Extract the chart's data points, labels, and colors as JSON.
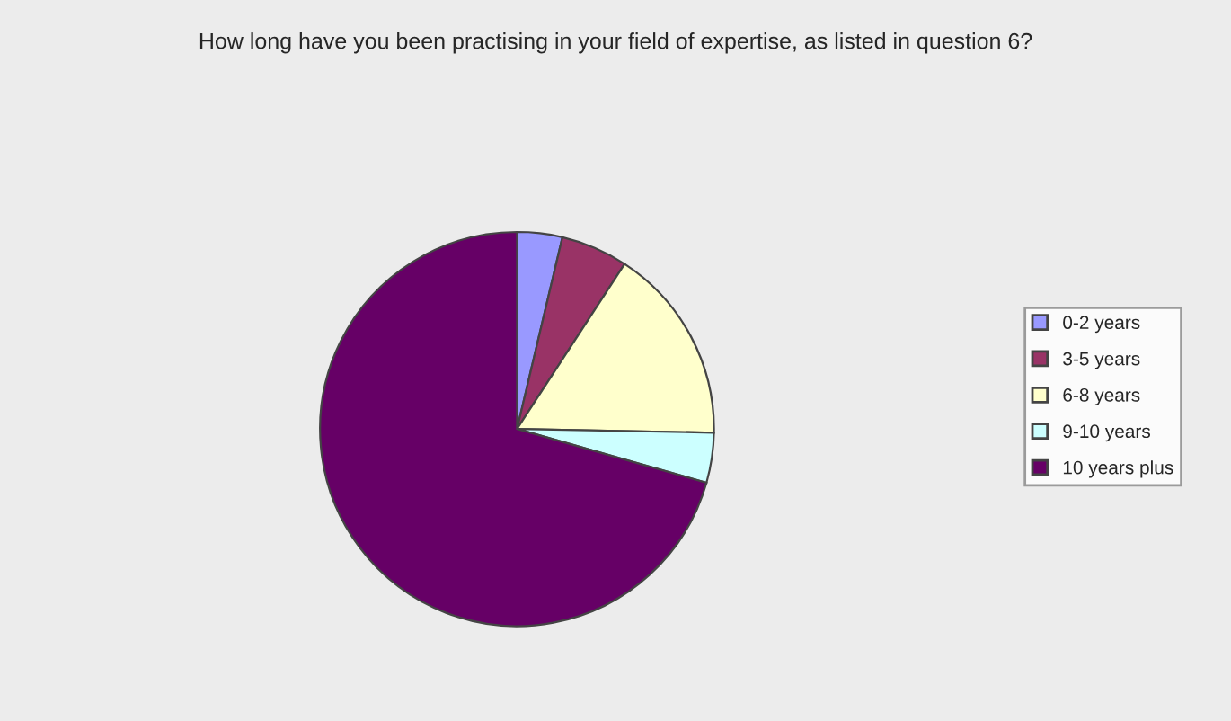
{
  "chart_data": {
    "type": "pie",
    "title": "How long have you been practising in your field of expertise, as listed in question 6?",
    "categories": [
      "0-2 years",
      "3-5 years",
      "6-8 years",
      "9-10 years",
      "10 years plus"
    ],
    "values": [
      3.7,
      5.5,
      16.1,
      4.1,
      70.6
    ],
    "colors": [
      "#9999ff",
      "#993366",
      "#ffffcc",
      "#ccffff",
      "#660066"
    ],
    "legend": "right"
  }
}
